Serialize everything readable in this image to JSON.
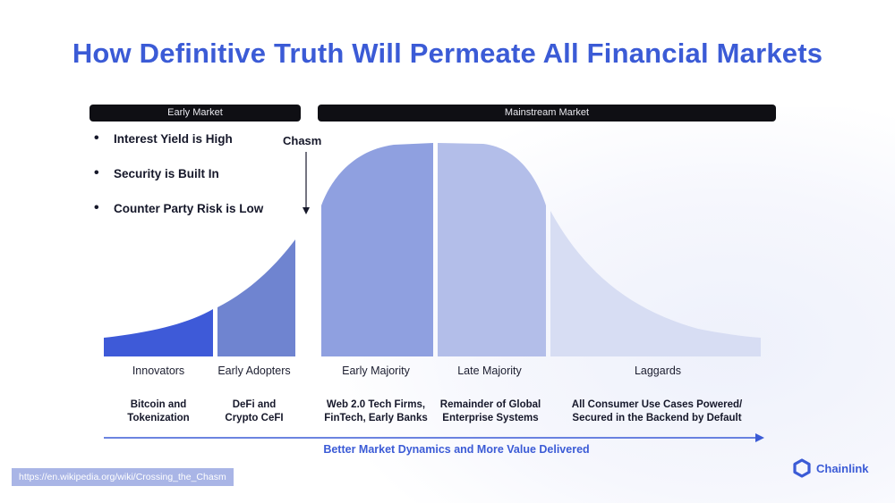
{
  "title": "How Definitive Truth Will Permeate All Financial Markets",
  "markets": {
    "early": "Early Market",
    "mainstream": "Mainstream Market"
  },
  "bullets": [
    "Interest Yield is High",
    "Security is Built In",
    "Counter Party Risk is Low"
  ],
  "chasm_label": "Chasm",
  "segments": [
    {
      "name": "Innovators",
      "desc": "Bitcoin and\nTokenization",
      "color": "#3e5ad8"
    },
    {
      "name": "Early Adopters",
      "desc": "DeFi and\nCrypto CeFI",
      "color": "#6f84d0"
    },
    {
      "name": "Early Majority",
      "desc": "Web 2.0 Tech Firms,\nFinTech, Early Banks",
      "color": "#8fa0e0"
    },
    {
      "name": "Late Majority",
      "desc": "Remainder of Global\nEnterprise Systems",
      "color": "#b3bee9"
    },
    {
      "name": "Laggards",
      "desc": "All Consumer Use Cases Powered/\nSecured in the Backend by Default",
      "color": "#d7ddf3"
    }
  ],
  "dynamics_label": "Better Market Dynamics and More Value Delivered",
  "source": "https://en.wikipedia.org/wiki/Crossing_the_Chasm",
  "brand": {
    "name": "Chainlink",
    "color": "#3b5bd6"
  }
}
